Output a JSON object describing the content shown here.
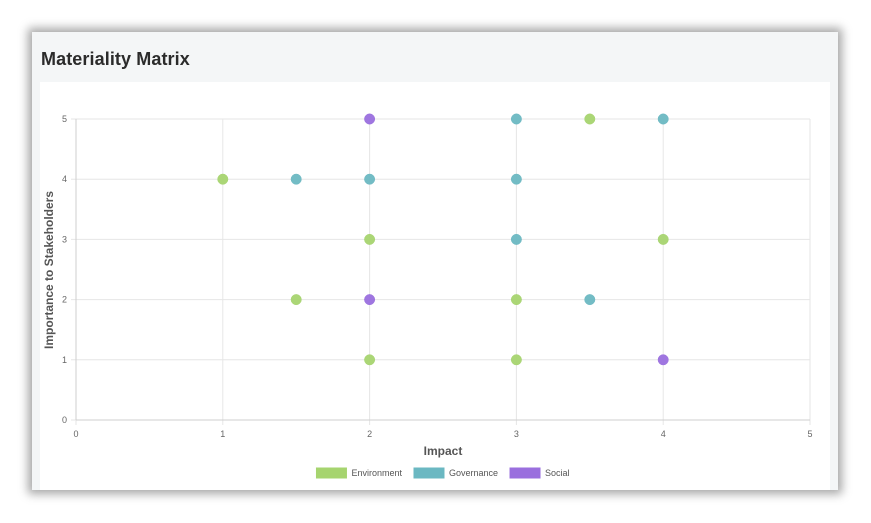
{
  "card": {
    "title": "Materiality Matrix"
  },
  "chart_data": {
    "type": "scatter",
    "title": "",
    "xlabel": "Impact",
    "ylabel": "Importance to Stakeholders",
    "xlim": [
      0,
      5
    ],
    "ylim": [
      0,
      5
    ],
    "xticks": [
      "0",
      "1",
      "2",
      "3",
      "4",
      "5"
    ],
    "yticks": [
      "0",
      "1",
      "2",
      "3",
      "4",
      "5"
    ],
    "grid": true,
    "legend_position": "bottom",
    "series": [
      {
        "name": "Environment",
        "color": "#a6d46f",
        "points": [
          {
            "x": 1,
            "y": 4
          },
          {
            "x": 1.5,
            "y": 2
          },
          {
            "x": 2,
            "y": 3
          },
          {
            "x": 2,
            "y": 1
          },
          {
            "x": 3,
            "y": 2
          },
          {
            "x": 3,
            "y": 1
          },
          {
            "x": 3.5,
            "y": 5
          },
          {
            "x": 4,
            "y": 3
          }
        ]
      },
      {
        "name": "Governance",
        "color": "#6bb8c2",
        "points": [
          {
            "x": 1.5,
            "y": 4
          },
          {
            "x": 2,
            "y": 4
          },
          {
            "x": 3,
            "y": 5
          },
          {
            "x": 3,
            "y": 4
          },
          {
            "x": 3,
            "y": 3
          },
          {
            "x": 3.5,
            "y": 2
          },
          {
            "x": 4,
            "y": 5
          }
        ]
      },
      {
        "name": "Social",
        "color": "#9a6fde",
        "points": [
          {
            "x": 2,
            "y": 5
          },
          {
            "x": 2,
            "y": 2
          },
          {
            "x": 4,
            "y": 1
          }
        ]
      }
    ]
  }
}
